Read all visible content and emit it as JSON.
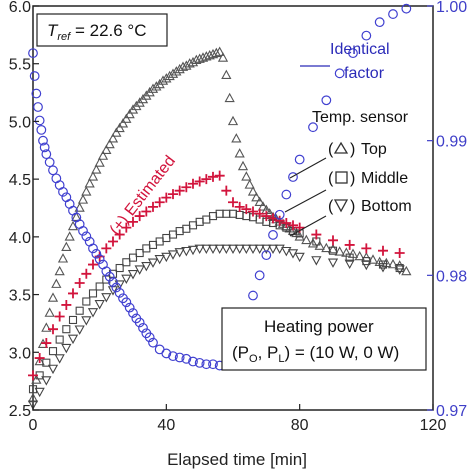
{
  "chart_data": {
    "type": "scatter",
    "xlabel": "Elapsed time [min]",
    "xlim": [
      0,
      120
    ],
    "x_ticks": [
      "0",
      "40",
      "80",
      "120"
    ],
    "ylim_left": [
      2.5,
      6.0
    ],
    "y_ticks_left": [
      "2.5",
      "3.0",
      "3.5",
      "4.0",
      "4.5",
      "5.0",
      "5.5",
      "6.0"
    ],
    "ylim_right": [
      0.97,
      1.0
    ],
    "y_ticks_right": [
      "0.97",
      "0.98",
      "0.99",
      "1.00"
    ],
    "tref_label": "T",
    "tref_sub": "ref",
    "tref_value": " = 22.6 °C",
    "identical_factor_label": [
      "Identical",
      "factor"
    ],
    "estimated_label": "(+) Estimated",
    "sensor_legend_title": "Temp. sensor",
    "sensor_legend_items": [
      "Top",
      "Middle",
      "Bottom"
    ],
    "heating_power_lines": [
      "Heating power",
      "(P",
      "O",
      ", P",
      "L",
      ") = (10 W, 0 W)"
    ],
    "colors": {
      "top": "#555555",
      "middle": "#444444",
      "bottom": "#444444",
      "estimated": "#d2143c",
      "identical": "#4040d0"
    },
    "series": [
      {
        "name": "Top",
        "marker": "triangle-up",
        "axis": "left",
        "x": [
          0,
          1,
          2,
          3,
          4,
          5,
          6,
          7,
          8,
          9,
          10,
          11,
          12,
          13,
          14,
          15,
          16,
          17,
          18,
          19,
          20,
          21,
          22,
          23,
          24,
          25,
          26,
          27,
          28,
          29,
          30,
          31,
          32,
          33,
          34,
          35,
          36,
          37,
          38,
          39,
          40,
          41,
          42,
          43,
          44,
          45,
          46,
          47,
          48,
          49,
          50,
          51,
          52,
          53,
          54,
          55,
          56,
          57,
          58,
          59,
          60,
          61,
          62,
          63,
          64,
          65,
          66,
          67,
          68,
          69,
          70,
          71,
          72,
          73,
          74,
          75,
          76,
          77,
          78,
          79,
          80,
          82,
          84,
          86,
          88,
          90,
          92,
          94,
          96,
          98,
          100,
          102,
          104,
          106,
          108,
          110,
          112
        ],
        "y": [
          2.6,
          2.76,
          2.92,
          3.07,
          3.21,
          3.34,
          3.47,
          3.59,
          3.7,
          3.81,
          3.91,
          4.0,
          4.09,
          4.17,
          4.25,
          4.32,
          4.39,
          4.46,
          4.52,
          4.58,
          4.64,
          4.7,
          4.75,
          4.8,
          4.85,
          4.9,
          4.94,
          4.98,
          5.02,
          5.06,
          5.1,
          5.13,
          5.16,
          5.19,
          5.22,
          5.25,
          5.28,
          5.3,
          5.32,
          5.35,
          5.37,
          5.39,
          5.41,
          5.43,
          5.45,
          5.47,
          5.48,
          5.5,
          5.51,
          5.53,
          5.54,
          5.55,
          5.56,
          5.57,
          5.58,
          5.59,
          5.6,
          5.55,
          5.4,
          5.2,
          5.0,
          4.85,
          4.72,
          4.61,
          4.52,
          4.45,
          4.39,
          4.34,
          4.3,
          4.26,
          4.23,
          4.2,
          4.17,
          4.15,
          4.13,
          4.11,
          4.09,
          4.07,
          4.05,
          4.03,
          4.0,
          3.97,
          3.94,
          3.92,
          3.9,
          3.89,
          3.87,
          3.86,
          3.85,
          3.83,
          3.82,
          3.8,
          3.78,
          3.77,
          3.76,
          3.75,
          3.7
        ]
      },
      {
        "name": "Middle",
        "marker": "square",
        "axis": "left",
        "x": [
          0,
          2,
          4,
          6,
          8,
          10,
          12,
          14,
          16,
          18,
          20,
          22,
          24,
          26,
          28,
          30,
          32,
          34,
          36,
          38,
          40,
          42,
          44,
          46,
          48,
          50,
          52,
          54,
          56,
          58,
          60,
          62,
          64,
          66,
          68,
          70,
          72,
          74,
          76,
          78,
          80,
          85,
          90,
          95,
          100,
          105,
          110
        ],
        "y": [
          2.68,
          2.8,
          2.91,
          3.01,
          3.11,
          3.2,
          3.28,
          3.36,
          3.44,
          3.51,
          3.57,
          3.63,
          3.68,
          3.73,
          3.78,
          3.82,
          3.86,
          3.9,
          3.93,
          3.96,
          3.99,
          4.02,
          4.05,
          4.07,
          4.1,
          4.13,
          4.15,
          4.18,
          4.2,
          4.2,
          4.2,
          4.19,
          4.18,
          4.17,
          4.15,
          4.13,
          4.12,
          4.1,
          4.08,
          4.05,
          4.03,
          3.96,
          3.88,
          3.82,
          3.79,
          3.76,
          3.73
        ]
      },
      {
        "name": "Bottom",
        "marker": "triangle-down",
        "axis": "left",
        "x": [
          0,
          2,
          4,
          6,
          8,
          10,
          12,
          14,
          16,
          18,
          20,
          22,
          24,
          26,
          28,
          30,
          32,
          34,
          36,
          38,
          40,
          42,
          44,
          46,
          48,
          50,
          52,
          54,
          56,
          58,
          60,
          62,
          64,
          66,
          68,
          70,
          72,
          74,
          76,
          78,
          80,
          85,
          90,
          95,
          100,
          105,
          110
        ],
        "y": [
          2.55,
          2.66,
          2.76,
          2.86,
          2.95,
          3.04,
          3.12,
          3.2,
          3.28,
          3.35,
          3.42,
          3.48,
          3.54,
          3.59,
          3.64,
          3.68,
          3.72,
          3.75,
          3.78,
          3.81,
          3.83,
          3.85,
          3.87,
          3.88,
          3.89,
          3.9,
          3.9,
          3.9,
          3.9,
          3.9,
          3.9,
          3.9,
          3.9,
          3.9,
          3.9,
          3.9,
          3.9,
          3.9,
          3.88,
          3.86,
          3.83,
          3.8,
          3.78,
          3.77,
          3.76,
          3.74,
          3.72
        ]
      },
      {
        "name": "(+) Estimated",
        "marker": "plus",
        "axis": "left",
        "x": [
          0,
          2,
          4,
          6,
          8,
          10,
          12,
          14,
          16,
          18,
          20,
          22,
          24,
          26,
          28,
          30,
          32,
          34,
          36,
          38,
          40,
          42,
          44,
          46,
          48,
          50,
          52,
          54,
          56,
          58,
          60,
          62,
          64,
          66,
          68,
          70,
          72,
          74,
          76,
          78,
          80,
          85,
          90,
          95,
          100,
          105,
          110
        ],
        "y": [
          2.8,
          2.95,
          3.08,
          3.2,
          3.31,
          3.41,
          3.51,
          3.6,
          3.68,
          3.76,
          3.83,
          3.9,
          3.96,
          4.02,
          4.08,
          4.13,
          4.18,
          4.22,
          4.26,
          4.3,
          4.34,
          4.37,
          4.4,
          4.43,
          4.46,
          4.48,
          4.5,
          4.52,
          4.53,
          4.4,
          4.3,
          4.26,
          4.24,
          4.22,
          4.2,
          4.18,
          4.16,
          4.14,
          4.12,
          4.1,
          4.08,
          4.02,
          3.97,
          3.93,
          3.9,
          3.88,
          3.86
        ]
      },
      {
        "name": "Identical factor",
        "marker": "circle",
        "axis": "right",
        "x": [
          0,
          0.5,
          1,
          1.5,
          2,
          2.5,
          3,
          3.5,
          4,
          5,
          6,
          7,
          8,
          9,
          10,
          11,
          12,
          13,
          14,
          15,
          16,
          17,
          18,
          19,
          20,
          21,
          22,
          23,
          24,
          25,
          26,
          27,
          28,
          29,
          30,
          31,
          32,
          33,
          34,
          35,
          36,
          38,
          40,
          42,
          44,
          46,
          48,
          50,
          52,
          54,
          56,
          58,
          60,
          62,
          64,
          66,
          68,
          70,
          72,
          74,
          76,
          78,
          80,
          84,
          88,
          92,
          96,
          100,
          104,
          108,
          112
        ],
        "y": [
          0.9965,
          0.9948,
          0.9935,
          0.9925,
          0.9915,
          0.9908,
          0.99,
          0.9895,
          0.989,
          0.9884,
          0.9878,
          0.9872,
          0.9867,
          0.9862,
          0.9858,
          0.9853,
          0.9848,
          0.9843,
          0.9838,
          0.9833,
          0.9829,
          0.9825,
          0.982,
          0.9816,
          0.9812,
          0.9808,
          0.9803,
          0.9799,
          0.9795,
          0.9791,
          0.9787,
          0.9783,
          0.978,
          0.9776,
          0.9772,
          0.9768,
          0.9765,
          0.9761,
          0.9757,
          0.9754,
          0.975,
          0.9745,
          0.9742,
          0.974,
          0.9739,
          0.9738,
          0.9736,
          0.9735,
          0.9734,
          0.9734,
          0.9733,
          0.9735,
          0.9742,
          0.9755,
          0.977,
          0.9785,
          0.98,
          0.9815,
          0.983,
          0.9845,
          0.986,
          0.9873,
          0.9886,
          0.991,
          0.993,
          0.995,
          0.9965,
          0.9978,
          0.9988,
          0.9994,
          0.9998
        ]
      }
    ]
  }
}
